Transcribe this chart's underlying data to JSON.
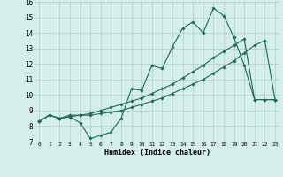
{
  "xlabel": "Humidex (Indice chaleur)",
  "ylabel": "",
  "xlim": [
    -0.5,
    23.5
  ],
  "ylim": [
    7,
    16
  ],
  "xticks": [
    0,
    1,
    2,
    3,
    4,
    5,
    6,
    7,
    8,
    9,
    10,
    11,
    12,
    13,
    14,
    15,
    16,
    17,
    18,
    19,
    20,
    21,
    22,
    23
  ],
  "yticks": [
    7,
    8,
    9,
    10,
    11,
    12,
    13,
    14,
    15,
    16
  ],
  "bg_color": "#d4eeeb",
  "grid_color": "#b0cece",
  "line_color": "#1a6b5a",
  "line1_x": [
    0,
    1,
    2,
    3,
    4,
    5,
    6,
    7,
    8,
    9,
    10,
    11,
    12,
    13,
    14,
    15,
    16,
    17,
    18,
    19,
    20,
    21,
    22,
    23
  ],
  "line1_y": [
    8.3,
    8.7,
    8.5,
    8.6,
    8.2,
    7.2,
    7.4,
    7.6,
    8.5,
    10.4,
    10.3,
    11.9,
    11.7,
    13.1,
    14.3,
    14.7,
    14.0,
    15.6,
    15.1,
    13.7,
    11.9,
    9.7,
    9.7,
    9.7
  ],
  "line2_x": [
    0,
    1,
    2,
    3,
    4,
    5,
    6,
    7,
    8,
    9,
    10,
    11,
    12,
    13,
    14,
    15,
    16,
    17,
    18,
    19,
    20,
    21,
    22,
    23
  ],
  "line2_y": [
    8.3,
    8.7,
    8.5,
    8.6,
    8.7,
    8.7,
    8.8,
    8.9,
    9.0,
    9.2,
    9.4,
    9.6,
    9.8,
    10.1,
    10.4,
    10.7,
    11.0,
    11.4,
    11.8,
    12.2,
    12.7,
    13.2,
    13.5,
    9.7
  ],
  "line3_x": [
    0,
    1,
    2,
    3,
    4,
    5,
    6,
    7,
    8,
    9,
    10,
    11,
    12,
    13,
    14,
    15,
    16,
    17,
    18,
    19,
    20,
    21,
    22,
    23
  ],
  "line3_y": [
    8.3,
    8.7,
    8.5,
    8.7,
    8.7,
    8.8,
    9.0,
    9.2,
    9.4,
    9.6,
    9.8,
    10.1,
    10.4,
    10.7,
    11.1,
    11.5,
    11.9,
    12.4,
    12.8,
    13.2,
    13.6,
    9.7,
    9.7,
    9.7
  ]
}
